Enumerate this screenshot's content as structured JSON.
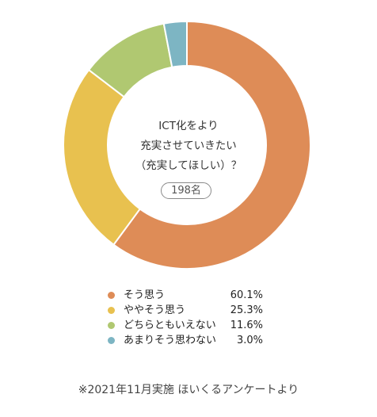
{
  "chart_data": {
    "type": "pie",
    "subtype": "donut",
    "center_title_lines": [
      "ICT化をより",
      "充実させていきたい",
      "（充実してほしい）？"
    ],
    "respondent_count": "198名",
    "categories": [
      "そう思う",
      "ややそう思う",
      "どちらともいえない",
      "あまりそう思わない"
    ],
    "values": [
      60.1,
      25.3,
      11.6,
      3.0
    ],
    "value_labels": [
      "60.1%",
      "25.3%",
      "11.6%",
      "3.0%"
    ],
    "colors": [
      "#DE8C57",
      "#E8C14F",
      "#B0C871",
      "#7DB5C3"
    ],
    "legend_position": "bottom"
  },
  "footnote": "※2021年11月実施 ほいくるアンケートより"
}
